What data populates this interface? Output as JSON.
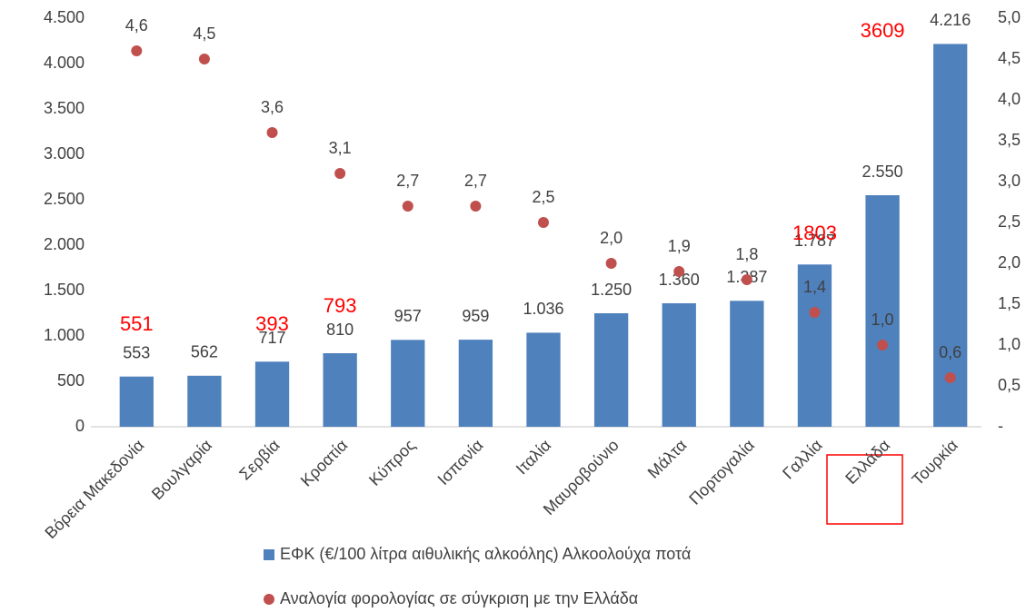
{
  "chart_data": {
    "type": "bar",
    "categories": [
      "Βόρεια Μακεδονία",
      "Βουλγαρία",
      "Σερβία",
      "Κροατία",
      "Κύπρος",
      "Ισπανία",
      "Ιταλία",
      "Μαυροβούνιο",
      "Μάλτα",
      "Πορτογαλία",
      "Γαλλία",
      "Ελλάδα",
      "Τουρκία"
    ],
    "series": [
      {
        "name": "ΕΦΚ (€/100 λίτρα αιθυλικής αλκοόλης) Αλκοολούχα ποτά",
        "type": "bar",
        "color": "#4f81bd",
        "values": [
          553,
          562,
          717,
          810,
          957,
          959,
          1036,
          1250,
          1360,
          1387,
          1787,
          2550,
          4216
        ],
        "value_labels": [
          "553",
          "562",
          "717",
          "810",
          "957",
          "959",
          "1.036",
          "1.250",
          "1.360",
          "1.387",
          "1.787",
          "2.550",
          "4.216"
        ]
      },
      {
        "name": "Αναλογία φορολογίας σε σύγκριση με την Ελλάδα",
        "type": "scatter",
        "axis": "y2",
        "color": "#c0504d",
        "values": [
          4.6,
          4.5,
          3.6,
          3.1,
          2.7,
          2.7,
          2.5,
          2.0,
          1.9,
          1.8,
          1.4,
          1.0,
          0.6
        ],
        "value_labels": [
          "4,6",
          "4,5",
          "3,6",
          "3,1",
          "2,7",
          "2,7",
          "2,5",
          "2,0",
          "1,9",
          "1,8",
          "1,4",
          "1,0",
          "0,6"
        ]
      }
    ],
    "ylim": [
      0,
      4500
    ],
    "yticks": [
      0,
      500,
      {
        "value": 1000,
        "label": "1.000"
      },
      {
        "value": 1500,
        "label": "1.500"
      },
      {
        "value": 2000,
        "label": "2.000"
      },
      {
        "value": 2500,
        "label": "2.500"
      },
      {
        "value": 3000,
        "label": "3.000"
      },
      {
        "value": 3500,
        "label": "3.500"
      },
      {
        "value": 4000,
        "label": "4.000"
      },
      {
        "value": 4500,
        "label": "4.500"
      }
    ],
    "y2lim": [
      0,
      5
    ],
    "y2ticks": [
      {
        "value": 0,
        "label": "-"
      },
      {
        "value": 0.5,
        "label": "0,5"
      },
      {
        "value": 1,
        "label": "1,0"
      },
      {
        "value": 1.5,
        "label": "1,5"
      },
      {
        "value": 2,
        "label": "2,0"
      },
      {
        "value": 2.5,
        "label": "2,5"
      },
      {
        "value": 3,
        "label": "3,0"
      },
      {
        "value": 3.5,
        "label": "3,5"
      },
      {
        "value": 4,
        "label": "4,0"
      },
      {
        "value": 4.5,
        "label": "4,5"
      },
      {
        "value": 5,
        "label": "5,0"
      }
    ],
    "annotations": [
      {
        "text": "551",
        "category": "Βόρεια Μακεδονία",
        "color": "#ff0000"
      },
      {
        "text": "393",
        "category": "Σερβία",
        "color": "#ff0000"
      },
      {
        "text": "793",
        "category": "Κροατία",
        "color": "#ff0000"
      },
      {
        "text": "1803",
        "category": "Γαλλία",
        "color": "#ff0000"
      },
      {
        "text": "3609",
        "category": "Ελλάδα",
        "color": "#ff0000"
      }
    ],
    "grid": false,
    "legend": "bottom"
  }
}
